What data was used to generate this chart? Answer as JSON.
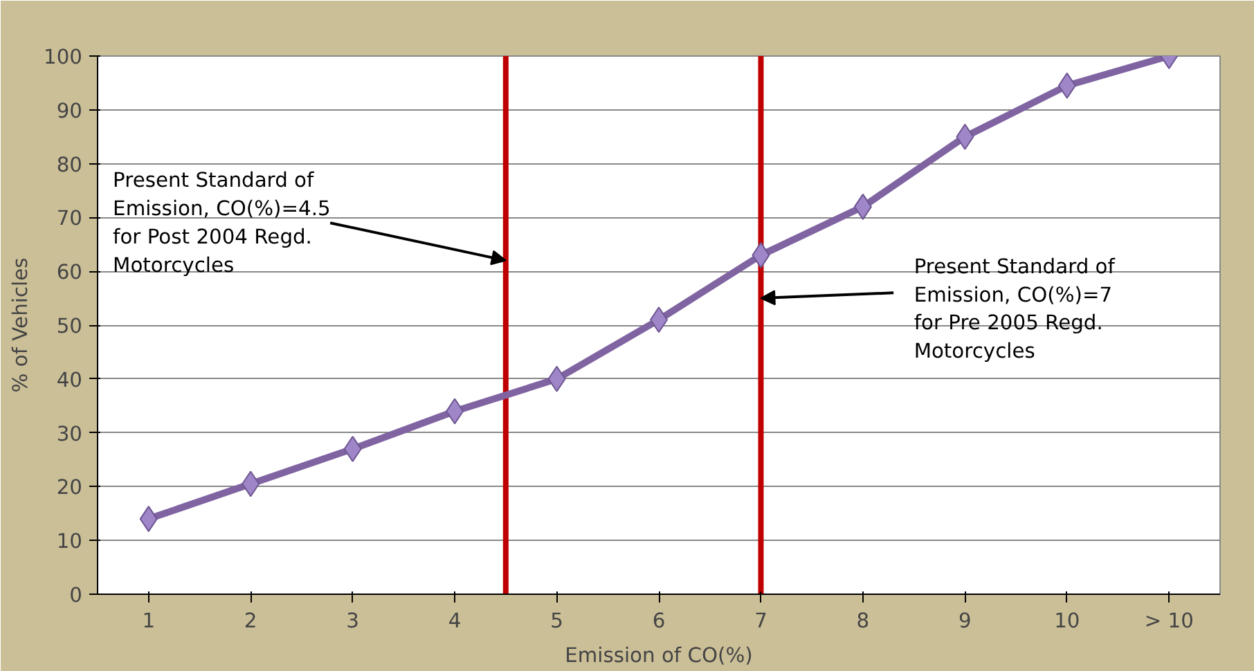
{
  "chart_data": {
    "type": "line",
    "xlabel": "Emission of CO(%)",
    "ylabel": "% of Vehicles",
    "x": [
      1,
      2,
      3,
      4,
      5,
      6,
      7,
      8,
      9,
      10,
      11
    ],
    "series": [
      {
        "color": "#8064a2",
        "values": [
          14,
          20.5,
          27,
          34,
          40,
          51,
          63,
          72,
          85,
          94.5,
          100
        ]
      }
    ],
    "xlim": [
      0.5,
      11.5
    ],
    "xticks": [
      1,
      2,
      3,
      4,
      5,
      6,
      7,
      8,
      9,
      10,
      {
        "value": 11,
        "label": "> 10"
      }
    ],
    "ylim": [
      0,
      100
    ],
    "yticks": [
      0,
      10,
      20,
      30,
      40,
      50,
      60,
      70,
      80,
      90,
      100
    ],
    "grid": "y",
    "marker": "diamond",
    "line_style": "solid",
    "ref_lines": [
      {
        "axis": "x",
        "value": 4.5,
        "color": "#c00000"
      },
      {
        "axis": "x",
        "value": 7,
        "color": "#c00000"
      }
    ],
    "annotations": [
      {
        "text": "Present Standard of\nEmission, CO(%)=4.5\nfor Post 2004 Regd.\nMotorcycles",
        "x": 4.5,
        "y": 62
      },
      {
        "text": "Present Standard of\nEmission, CO(%)=7\nfor Pre 2005 Regd.\nMotorcycles",
        "x": 7,
        "y": 55
      }
    ]
  }
}
